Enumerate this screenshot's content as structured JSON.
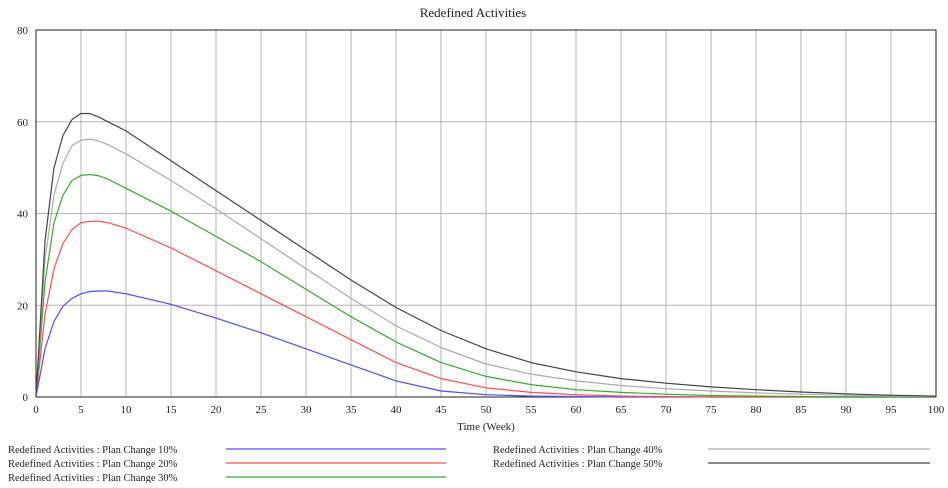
{
  "chart_data": {
    "type": "line",
    "title": "Redefined Activities",
    "xlabel": "Time (Week)",
    "ylabel": "",
    "xlim": [
      0,
      100
    ],
    "ylim": [
      0,
      80
    ],
    "x_ticks": [
      0,
      5,
      10,
      15,
      20,
      25,
      30,
      35,
      40,
      45,
      50,
      55,
      60,
      65,
      70,
      75,
      80,
      85,
      90,
      95,
      100
    ],
    "y_ticks": [
      0,
      20,
      40,
      60,
      80
    ],
    "grid": true,
    "legend_position": "bottom",
    "x": [
      0,
      1,
      2,
      3,
      4,
      5,
      6,
      7,
      8,
      10,
      15,
      20,
      25,
      30,
      35,
      40,
      45,
      50,
      55,
      60,
      65,
      70,
      75,
      80,
      85,
      90,
      95,
      100
    ],
    "series": [
      {
        "name": "Redefined Activities : Plan Change 10%",
        "color": "#4d4dff",
        "values": [
          0,
          10.5,
          16.5,
          19.8,
          21.5,
          22.5,
          23.0,
          23.1,
          23.1,
          22.5,
          20.2,
          17.2,
          14.0,
          10.5,
          7.0,
          3.5,
          1.3,
          0.5,
          0.2,
          0.1,
          0,
          0,
          0,
          0,
          0,
          0,
          0,
          0
        ]
      },
      {
        "name": "Redefined Activities : Plan Change 20%",
        "color": "#ff4d4d",
        "values": [
          0,
          18.0,
          28.0,
          33.5,
          36.5,
          38.0,
          38.3,
          38.3,
          38.0,
          36.8,
          32.5,
          27.5,
          22.5,
          17.5,
          12.5,
          7.5,
          4.0,
          2.0,
          1.0,
          0.5,
          0.2,
          0.1,
          0,
          0,
          0,
          0,
          0,
          0
        ]
      },
      {
        "name": "Redefined Activities : Plan Change 30%",
        "color": "#33aa33",
        "values": [
          0,
          25.0,
          38.0,
          44.0,
          47.2,
          48.3,
          48.5,
          48.2,
          47.5,
          45.5,
          40.5,
          35.0,
          29.5,
          23.5,
          17.5,
          12.0,
          7.5,
          4.5,
          2.7,
          1.6,
          1.0,
          0.6,
          0.3,
          0.2,
          0.1,
          0,
          0,
          0
        ]
      },
      {
        "name": "Redefined Activities : Plan Change 40%",
        "color": "#aaaaaa",
        "values": [
          0,
          30.0,
          44.0,
          51.0,
          54.8,
          56.0,
          56.2,
          55.8,
          55.0,
          53.0,
          47.2,
          41.0,
          34.5,
          28.0,
          21.5,
          15.5,
          10.8,
          7.2,
          5.0,
          3.5,
          2.5,
          1.8,
          1.3,
          0.9,
          0.6,
          0.4,
          0.2,
          0.1
        ]
      },
      {
        "name": "Redefined Activities : Plan Change 50%",
        "color": "#444444",
        "values": [
          0,
          34.0,
          50.0,
          57.0,
          60.5,
          61.8,
          61.8,
          61.0,
          60.0,
          58.0,
          51.5,
          45.0,
          38.5,
          32.0,
          25.5,
          19.5,
          14.5,
          10.5,
          7.5,
          5.5,
          4.0,
          3.0,
          2.2,
          1.6,
          1.1,
          0.7,
          0.4,
          0.2
        ]
      }
    ]
  }
}
